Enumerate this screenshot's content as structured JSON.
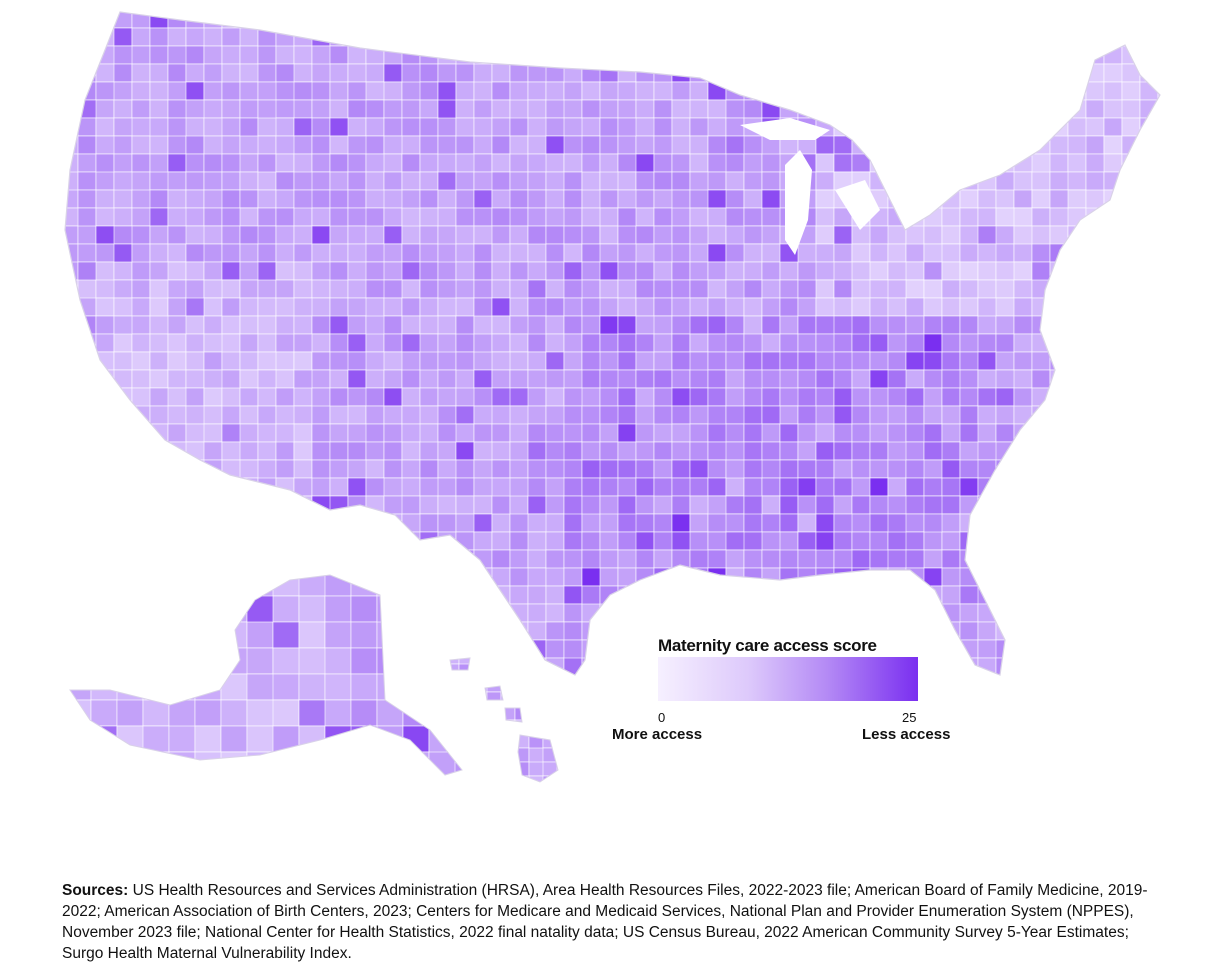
{
  "legend": {
    "title": "Maternity care access score",
    "min_value": "0",
    "max_value": "25",
    "left_label": "More access",
    "right_label": "Less access",
    "scale": {
      "min": 0,
      "max": 25
    },
    "colors": [
      "#f6f0ff",
      "#ddc9fb",
      "#b48af5",
      "#7a2ff0"
    ]
  },
  "sources": {
    "label": "Sources:",
    "text": " US Health Resources and Services Administration (HRSA), Area Health Resources Files, 2022-2023 file; American Board of Family Medicine, 2019-2022; American Association of Birth Centers, 2023; Centers for Medicare and Medicaid Services, National Plan and Provider Enumeration System (NPPES), November 2023 file; National Center for Health Statistics, 2022 final natality data; US Census Bureau, 2022 American Community Survey 5-Year Estimates; Surgo Health Maternal Vulnerability Index."
  },
  "map": {
    "regions": [
      "contiguous-us",
      "alaska",
      "hawaii"
    ],
    "fill_color_low": "#f3ecff",
    "fill_color_high": "#7a2ff0",
    "border_color": "#ffffff"
  }
}
